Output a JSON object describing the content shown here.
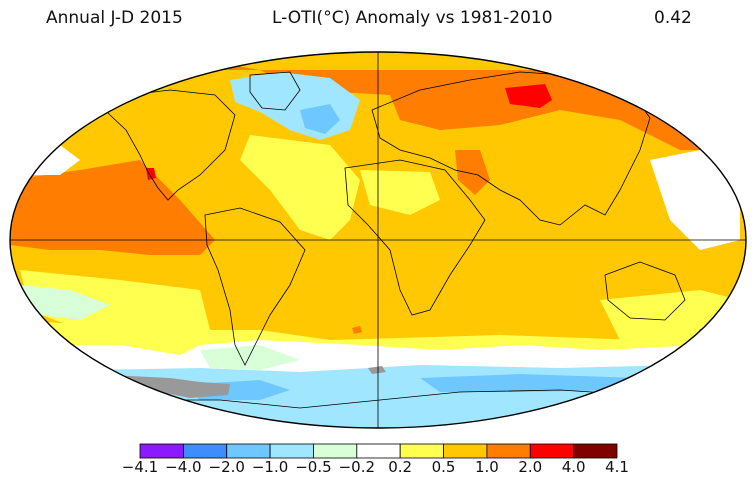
{
  "header": {
    "left": "Annual J-D 2015",
    "center": "L-OTI(°C) Anomaly vs 1981-2010",
    "right": "0.42"
  },
  "legend": {
    "colors": [
      "#8c1aff",
      "#3f8cff",
      "#6ec8ff",
      "#a0e6ff",
      "#d8ffd8",
      "#ffffff",
      "#ffff50",
      "#ffc800",
      "#ff7d00",
      "#ff0000",
      "#800000"
    ],
    "ticks": [
      "−4.1",
      "−4.0",
      "−2.0",
      "−1.0",
      "−0.5",
      "−0.2",
      "0.2",
      "0.5",
      "1.0",
      "2.0",
      "4.0",
      "4.1"
    ]
  },
  "map": {
    "colors": {
      "background": "#ffc800",
      "orange": "#ff7d00",
      "red": "#ff0000",
      "yellow": "#ffff50",
      "white": "#ffffff",
      "light_green": "#d8ffd8",
      "light_cyan": "#a0e6ff",
      "cyan": "#6ec8ff",
      "blue": "#3f8cff",
      "missing": "#999999",
      "coast": "#000000"
    }
  }
}
